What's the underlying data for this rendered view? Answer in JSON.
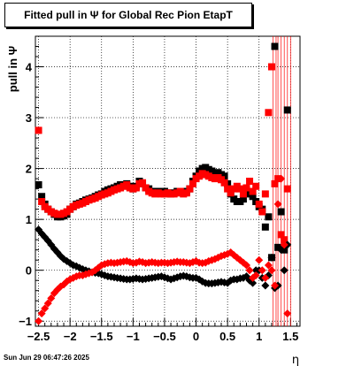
{
  "window": {
    "title": "Fitted pull in  Ψ  for Global Rec Pion EtapT",
    "timestamp": "Sun Jun 29 06:47:26 2025"
  },
  "chart_data": {
    "type": "scatter",
    "title": "Fitted pull in  Ψ  for Global Rec Pion EtapT",
    "xlabel": "η",
    "ylabel": "pull in  Ψ",
    "xlim": [
      -2.55,
      1.65
    ],
    "ylim": [
      -1.1,
      4.6
    ],
    "grid": true,
    "x_ticks": [
      -2.5,
      -2,
      -1.5,
      -1,
      -0.5,
      0,
      0.5,
      1,
      1.5
    ],
    "x_tick_labels": [
      "−2.5",
      "−2",
      "−1.5",
      "−1",
      "−0.5",
      "0",
      "0.5",
      "1",
      "1.5"
    ],
    "y_ticks": [
      -1,
      0,
      1,
      2,
      3,
      4
    ],
    "y_tick_labels": [
      "−1",
      "0",
      "1",
      "2",
      "3",
      "4"
    ],
    "colors": {
      "series_black": "#000000",
      "series_red": "#ff0000",
      "grid": "#000000"
    },
    "series": [
      {
        "marker": "square",
        "color": "#000000",
        "x": [
          -2.5,
          -2.45,
          -2.4,
          -2.35,
          -2.3,
          -2.25,
          -2.2,
          -2.15,
          -2.1,
          -2.05,
          -2.0,
          -1.95,
          -1.9,
          -1.85,
          -1.8,
          -1.75,
          -1.7,
          -1.65,
          -1.6,
          -1.55,
          -1.5,
          -1.45,
          -1.4,
          -1.35,
          -1.3,
          -1.25,
          -1.2,
          -1.15,
          -1.1,
          -1.05,
          -1.0,
          -0.95,
          -0.9,
          -0.85,
          -0.8,
          -0.75,
          -0.7,
          -0.65,
          -0.6,
          -0.55,
          -0.5,
          -0.45,
          -0.4,
          -0.35,
          -0.3,
          -0.25,
          -0.2,
          -0.15,
          -0.1,
          -0.05,
          0.0,
          0.05,
          0.1,
          0.15,
          0.2,
          0.25,
          0.3,
          0.35,
          0.4,
          0.45,
          0.5,
          0.55,
          0.6,
          0.65,
          0.7,
          0.75,
          0.8,
          0.85,
          0.9,
          0.95,
          1.0,
          1.05,
          1.1,
          1.15,
          1.2,
          1.25,
          1.3,
          1.35,
          1.4,
          1.45
        ],
        "y": [
          1.68,
          1.45,
          1.3,
          1.2,
          1.15,
          1.1,
          1.05,
          1.05,
          1.07,
          1.1,
          1.2,
          1.25,
          1.3,
          1.32,
          1.35,
          1.38,
          1.4,
          1.42,
          1.45,
          1.48,
          1.5,
          1.55,
          1.58,
          1.6,
          1.62,
          1.65,
          1.68,
          1.68,
          1.7,
          1.65,
          1.6,
          1.65,
          1.75,
          1.7,
          1.62,
          1.6,
          1.55,
          1.52,
          1.55,
          1.55,
          1.55,
          1.52,
          1.5,
          1.52,
          1.55,
          1.55,
          1.52,
          1.55,
          1.6,
          1.75,
          1.85,
          1.95,
          2.0,
          2.02,
          1.98,
          1.95,
          1.9,
          1.92,
          1.88,
          1.85,
          1.7,
          1.5,
          1.4,
          1.35,
          1.35,
          1.4,
          1.5,
          1.55,
          1.45,
          1.35,
          1.25,
          1.2,
          0.85,
          1.05,
          0.25,
          4.4,
          0.45,
          1.15,
          0.4,
          3.15
        ]
      },
      {
        "marker": "square",
        "color": "#ff0000",
        "x": [
          -2.5,
          -2.45,
          -2.4,
          -2.35,
          -2.3,
          -2.25,
          -2.2,
          -2.15,
          -2.1,
          -2.05,
          -2.0,
          -1.95,
          -1.9,
          -1.85,
          -1.8,
          -1.75,
          -1.7,
          -1.65,
          -1.6,
          -1.55,
          -1.5,
          -1.45,
          -1.4,
          -1.35,
          -1.3,
          -1.25,
          -1.2,
          -1.15,
          -1.1,
          -1.05,
          -1.0,
          -0.95,
          -0.9,
          -0.85,
          -0.8,
          -0.75,
          -0.7,
          -0.65,
          -0.6,
          -0.55,
          -0.5,
          -0.45,
          -0.4,
          -0.35,
          -0.3,
          -0.25,
          -0.2,
          -0.15,
          -0.1,
          -0.05,
          0.0,
          0.05,
          0.1,
          0.15,
          0.2,
          0.25,
          0.3,
          0.35,
          0.4,
          0.45,
          0.5,
          0.55,
          0.6,
          0.65,
          0.7,
          0.75,
          0.8,
          0.85,
          0.9,
          0.95,
          1.0,
          1.05,
          1.1,
          1.15,
          1.2,
          1.25,
          1.3,
          1.35,
          1.4,
          1.45
        ],
        "y": [
          2.75,
          1.35,
          1.25,
          1.2,
          1.15,
          1.12,
          1.1,
          1.1,
          1.12,
          1.15,
          1.2,
          1.25,
          1.28,
          1.3,
          1.32,
          1.35,
          1.38,
          1.4,
          1.42,
          1.45,
          1.48,
          1.5,
          1.52,
          1.55,
          1.58,
          1.6,
          1.62,
          1.65,
          1.68,
          1.62,
          1.6,
          1.62,
          1.7,
          1.72,
          1.62,
          1.55,
          1.52,
          1.5,
          1.52,
          1.5,
          1.5,
          1.52,
          1.5,
          1.5,
          1.52,
          1.55,
          1.5,
          1.52,
          1.6,
          1.7,
          1.8,
          1.85,
          1.9,
          1.88,
          1.85,
          1.82,
          1.8,
          1.82,
          1.78,
          1.72,
          1.6,
          1.52,
          1.6,
          1.65,
          1.6,
          1.5,
          1.62,
          1.75,
          1.55,
          1.65,
          1.3,
          1.15,
          1.5,
          3.1,
          4.0,
          1.7,
          1.8,
          0.7,
          0.6,
          1.6
        ]
      },
      {
        "marker": "diamond",
        "color": "#000000",
        "x": [
          -2.5,
          -2.45,
          -2.4,
          -2.35,
          -2.3,
          -2.25,
          -2.2,
          -2.15,
          -2.1,
          -2.05,
          -2.0,
          -1.95,
          -1.9,
          -1.85,
          -1.8,
          -1.75,
          -1.7,
          -1.65,
          -1.6,
          -1.55,
          -1.5,
          -1.45,
          -1.4,
          -1.35,
          -1.3,
          -1.25,
          -1.2,
          -1.15,
          -1.1,
          -1.05,
          -1.0,
          -0.95,
          -0.9,
          -0.85,
          -0.8,
          -0.75,
          -0.7,
          -0.65,
          -0.6,
          -0.55,
          -0.5,
          -0.45,
          -0.4,
          -0.35,
          -0.3,
          -0.25,
          -0.2,
          -0.15,
          -0.1,
          -0.05,
          0.0,
          0.05,
          0.1,
          0.15,
          0.2,
          0.25,
          0.3,
          0.35,
          0.4,
          0.45,
          0.5,
          0.55,
          0.6,
          0.65,
          0.7,
          0.75,
          0.8,
          0.85,
          0.9,
          0.95,
          1.0,
          1.05,
          1.1,
          1.15,
          1.2,
          1.25,
          1.3,
          1.35,
          1.4,
          1.45
        ],
        "y": [
          0.8,
          0.72,
          0.65,
          0.58,
          0.5,
          0.42,
          0.35,
          0.28,
          0.22,
          0.18,
          0.14,
          0.1,
          0.08,
          0.05,
          0.02,
          0.0,
          -0.02,
          -0.04,
          -0.05,
          -0.06,
          -0.08,
          -0.1,
          -0.12,
          -0.13,
          -0.14,
          -0.15,
          -0.16,
          -0.17,
          -0.18,
          -0.18,
          -0.17,
          -0.16,
          -0.17,
          -0.18,
          -0.17,
          -0.16,
          -0.15,
          -0.14,
          -0.13,
          -0.12,
          -0.14,
          -0.16,
          -0.18,
          -0.16,
          -0.14,
          -0.12,
          -0.11,
          -0.12,
          -0.14,
          -0.15,
          -0.15,
          -0.18,
          -0.22,
          -0.25,
          -0.26,
          -0.26,
          -0.25,
          -0.24,
          -0.23,
          -0.24,
          -0.25,
          -0.2,
          -0.18,
          -0.18,
          -0.16,
          -0.15,
          -0.12,
          -0.2,
          -0.25,
          0.0,
          0.0,
          -0.15,
          -0.3,
          -0.1,
          0.25,
          -0.35,
          -0.3,
          0.4,
          0.0,
          0.5
        ]
      },
      {
        "marker": "diamond",
        "color": "#ff0000",
        "x": [
          -2.5,
          -2.45,
          -2.4,
          -2.35,
          -2.3,
          -2.25,
          -2.2,
          -2.15,
          -2.1,
          -2.05,
          -2.0,
          -1.95,
          -1.9,
          -1.85,
          -1.8,
          -1.75,
          -1.7,
          -1.65,
          -1.6,
          -1.55,
          -1.5,
          -1.45,
          -1.4,
          -1.35,
          -1.3,
          -1.25,
          -1.2,
          -1.15,
          -1.1,
          -1.05,
          -1.0,
          -0.95,
          -0.9,
          -0.85,
          -0.8,
          -0.75,
          -0.7,
          -0.65,
          -0.6,
          -0.55,
          -0.5,
          -0.45,
          -0.4,
          -0.35,
          -0.3,
          -0.25,
          -0.2,
          -0.15,
          -0.1,
          -0.05,
          0.0,
          0.05,
          0.1,
          0.15,
          0.2,
          0.25,
          0.3,
          0.35,
          0.4,
          0.45,
          0.5,
          0.55,
          0.6,
          0.65,
          0.7,
          0.75,
          0.8,
          0.85,
          0.9,
          0.95,
          1.0,
          1.05,
          1.1,
          1.15,
          1.2,
          1.25,
          1.3,
          1.35,
          1.4,
          1.45
        ],
        "y": [
          -1.0,
          -0.85,
          -0.75,
          -0.65,
          -0.55,
          -0.45,
          -0.38,
          -0.32,
          -0.28,
          -0.22,
          -0.18,
          -0.15,
          -0.12,
          -0.1,
          -0.1,
          -0.08,
          -0.06,
          -0.04,
          0.0,
          0.05,
          0.1,
          0.12,
          0.14,
          0.15,
          0.14,
          0.15,
          0.16,
          0.17,
          0.18,
          0.16,
          0.14,
          0.15,
          0.17,
          0.16,
          0.14,
          0.15,
          0.16,
          0.15,
          0.14,
          0.15,
          0.15,
          0.14,
          0.15,
          0.16,
          0.17,
          0.16,
          0.16,
          0.15,
          0.14,
          0.16,
          0.18,
          0.15,
          0.14,
          0.15,
          0.18,
          0.2,
          0.22,
          0.25,
          0.28,
          0.3,
          0.32,
          0.35,
          0.3,
          0.25,
          0.2,
          0.15,
          0.1,
          0.0,
          -0.15,
          -0.1,
          0.2,
          0.0,
          -0.15,
          0.1,
          0.0,
          -0.3,
          1.3,
          1.8,
          0.5,
          -0.85
        ]
      }
    ]
  }
}
